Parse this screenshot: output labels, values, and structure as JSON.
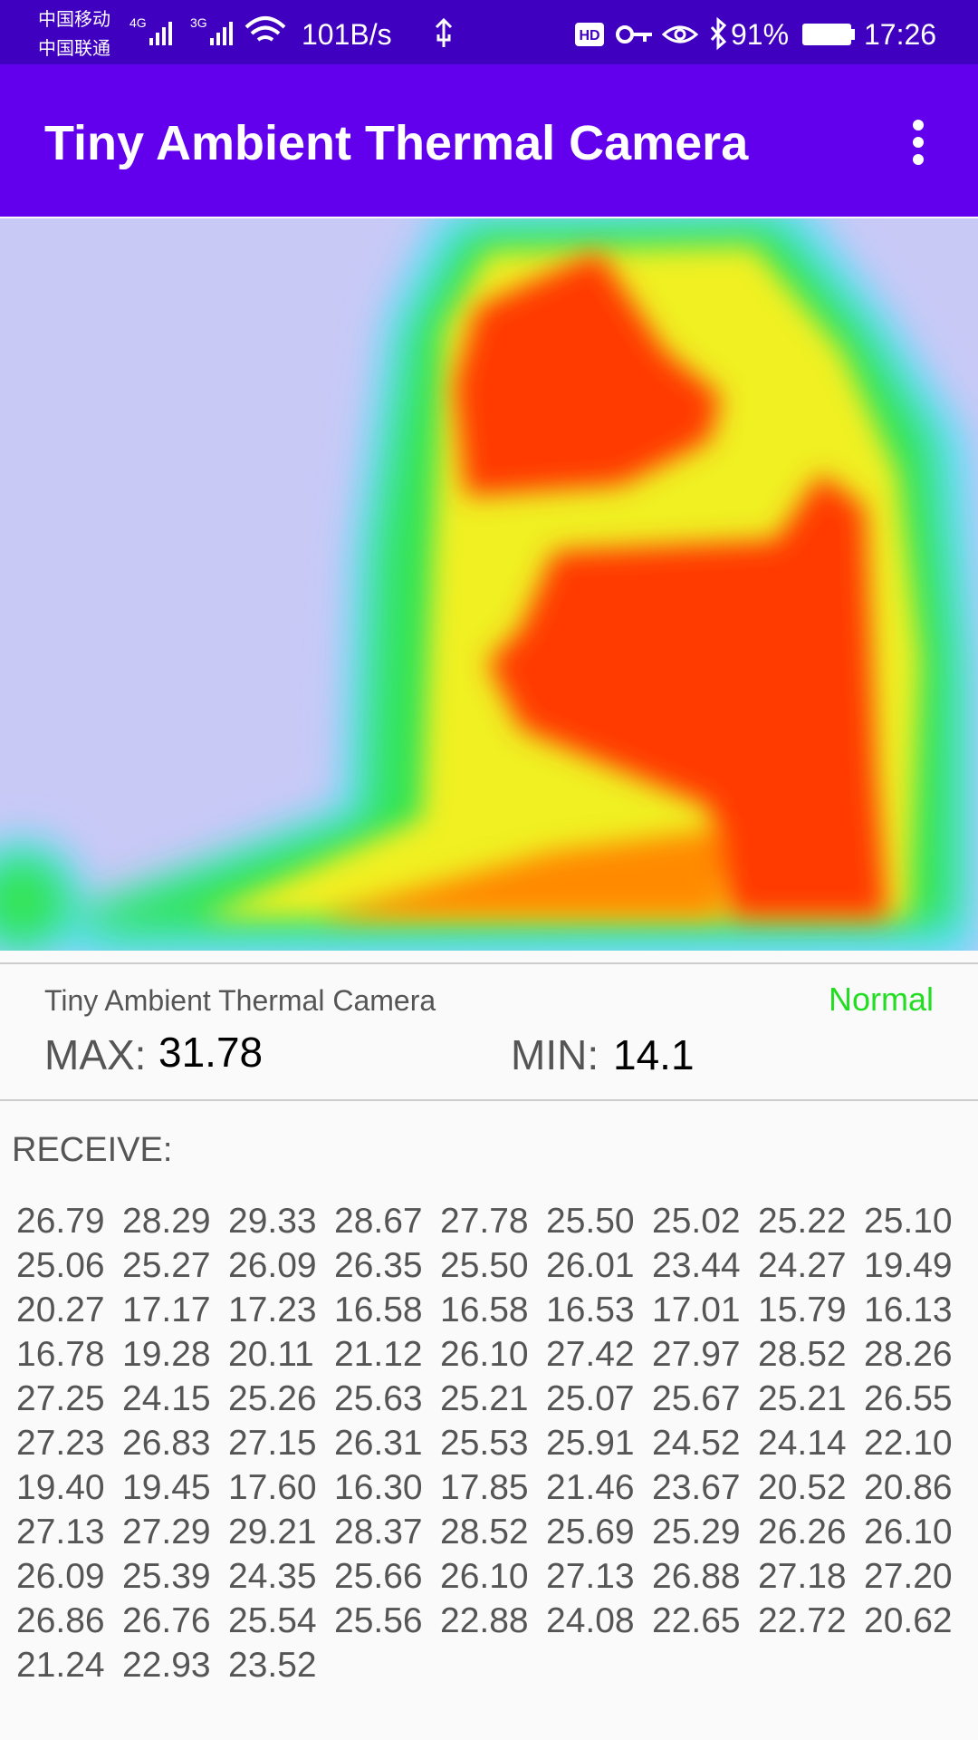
{
  "status_bar": {
    "carrier1": "中国移动",
    "carrier2": "中国联通",
    "net1": "4G",
    "net2": "3G",
    "speed": "101B/s",
    "hd": "HD",
    "battery": "91%",
    "time": "17:26"
  },
  "app_bar": {
    "title": "Tiny Ambient Thermal Camera"
  },
  "info": {
    "subtitle": "Tiny Ambient Thermal Camera",
    "status": "Normal",
    "max_label": "MAX:",
    "max_value": "31.78",
    "min_label": "MIN:",
    "min_value": "14.1"
  },
  "receive": {
    "label": "RECEIVE:",
    "rows": [
      [
        "26.79",
        "28.29",
        "29.33",
        "28.67",
        "27.78",
        "25.50",
        "25.02",
        "25.22",
        "25.10"
      ],
      [
        "25.06",
        "25.27",
        "26.09",
        "26.35",
        "25.50",
        "26.01",
        "23.44",
        "24.27",
        "19.49"
      ],
      [
        "20.27",
        "17.17",
        "17.23",
        "16.58",
        "16.58",
        "16.53",
        "17.01",
        "15.79",
        "16.13"
      ],
      [
        "16.78",
        "19.28",
        "20.11",
        "21.12",
        "26.10",
        "27.42",
        "27.97",
        "28.52",
        "28.26"
      ],
      [
        "27.25",
        "24.15",
        "25.26",
        "25.63",
        "25.21",
        "25.07",
        "25.67",
        "25.21",
        "26.55"
      ],
      [
        "27.23",
        "26.83",
        "27.15",
        "26.31",
        "25.53",
        "25.91",
        "24.52",
        "24.14",
        "22.10"
      ],
      [
        "19.40",
        "19.45",
        "17.60",
        "16.30",
        "17.85",
        "21.46",
        "23.67",
        "20.52",
        "20.86"
      ],
      [
        "27.13",
        "27.29",
        "29.21",
        "28.37",
        "28.52",
        "25.69",
        "25.29",
        "26.26",
        "26.10"
      ],
      [
        "26.09",
        "25.39",
        "24.35",
        "25.66",
        "26.10",
        "27.13",
        "26.88",
        "27.18",
        "27.20"
      ],
      [
        "26.86",
        "26.76",
        "25.54",
        "25.56",
        "22.88",
        "24.08",
        "22.65",
        "22.72",
        "20.62"
      ],
      [
        "21.24",
        "22.93",
        "23.52"
      ]
    ]
  }
}
